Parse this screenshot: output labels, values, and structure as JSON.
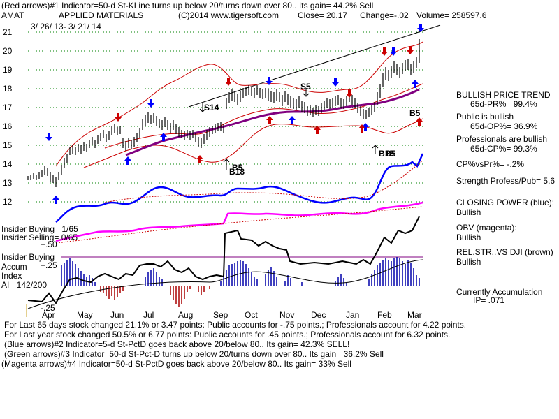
{
  "header": {
    "line1": "(Red arrows)#1 Indicator=50-d St-KLine turns up below 20/turns down over 80.. Its gain= 44.2% Sell",
    "ticker": "AMAT",
    "company": "APPLIED MATERIALS",
    "copyright": "(C)2014 www.tigersoft.com",
    "close": "Close=  20.17",
    "change": "Change=-.02",
    "volume": "Volume=  258597.6",
    "date_range": "3/ 26/ 13- 3/ 21/ 14"
  },
  "colors": {
    "price_bar": "#000000",
    "envelope": "#cc0000",
    "ma": "#800080",
    "closing_power": "#0000ff",
    "obv": "#ff00ff",
    "accum_up": "#0000aa",
    "accum_down": "#aa0000",
    "relstr": "#000000",
    "trendline": "#000000",
    "up_arrow": "#0000ff",
    "down_arrow": "#cc0000",
    "dotted": "#cc0000"
  },
  "y_ticks": [
    "21",
    "20",
    "19",
    "18",
    "17",
    "16",
    "15",
    "14",
    "13",
    "12"
  ],
  "x_months": [
    "Apr",
    "May",
    "Jun",
    "Jul",
    "Aug",
    "Sep",
    "Oct",
    "Nov",
    "Dec",
    "Jan",
    "Feb",
    "Mar"
  ],
  "chart_labels": {
    "s14": "S14",
    "s5": "S5",
    "b5a": "B5",
    "b18": "B18",
    "b5b": "B5",
    "b15a": "B15",
    "b15b": "B5"
  },
  "insider": {
    "buying_ratio": "Insider Buying= 1/65",
    "selling_ratio": "Insider Selling= 0/65",
    "plus50": "+.50",
    "buying": "Insider Buying",
    "accum": "Accum",
    "plus25": "+.25",
    "index": "Index",
    "ai": "AI= 142/200",
    "minus25": "-.25"
  },
  "side_panel": {
    "trend_title": "BULLISH PRICE TREND",
    "pr": "65d-PR%= 99.4%",
    "public": "Public is bullish",
    "op": "65d-OP%= 36.9%",
    "professionals": "Professionals are bullish",
    "cp": "65d-CP%= 99.3%",
    "cpvspr": "CP%vsPr%= -.2%",
    "strength": "Strength Profess/Pub= 5.6",
    "closing_power": "CLOSING POWER (blue):",
    "cp_state": "Bullish",
    "obv": "OBV (magenta):",
    "obv_state": "Bullish",
    "relstr": "REL.STR..VS DJI (brown)",
    "relstr_state": "Bullish",
    "accum": "Currently Accumulation",
    "ip": "IP=  .071"
  },
  "footer": {
    "l1": "For Last 65 days stock changed  21.1% or  3.47 points:  Public accounts for -.75 points.;  Professionals account for  4.22 points.",
    "l2": "For Last year stock changed  50.5% or  6.77 points:  Public accounts for  .45 points.;  Professionals account for  6.32 points.",
    "l3": "(Blue arrows)#2 Indicator=5-d St-PctD goes back above 20/below 80.. Its gain= 42.3% SELL!",
    "l4": "(Green arrows)#3 Indicator=50-d St-Pct-D turns up below 20/turns down over 80.. Its gain= 36.2% Sell",
    "l5": "(Magenta arrows)#4 Indicator=50-d St-PctD goes back above 20/below 80.. Its gain= 33% Sell"
  },
  "chart_data": {
    "type": "line",
    "title": "APPLIED MATERIALS",
    "x": [
      "Apr",
      "May",
      "Jun",
      "Jul",
      "Aug",
      "Sep",
      "Oct",
      "Nov",
      "Dec",
      "Jan",
      "Feb",
      "Mar"
    ],
    "ylim": [
      12,
      21
    ],
    "series": [
      {
        "name": "Close",
        "values": [
          13.2,
          14.4,
          14.9,
          16.3,
          15.2,
          17.4,
          17.9,
          17.0,
          16.8,
          17.5,
          18.9,
          20.17
        ]
      }
    ]
  }
}
